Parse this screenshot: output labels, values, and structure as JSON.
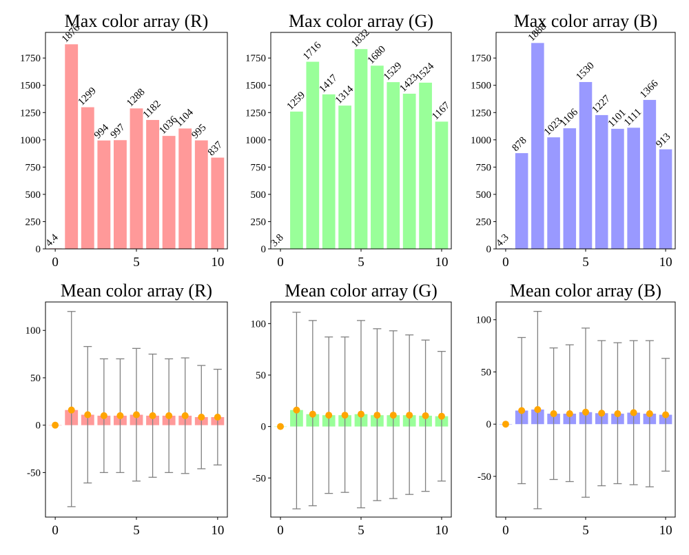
{
  "figure": {
    "background": "#ffffff"
  },
  "chart_data": [
    {
      "type": "bar",
      "title": "Max color array (R)",
      "color": "#ff9999",
      "x": [
        0,
        1,
        2,
        3,
        4,
        5,
        6,
        7,
        8,
        9,
        10
      ],
      "values": [
        4.4,
        1876,
        1299,
        994,
        997,
        1288,
        1182,
        1036,
        1104,
        995,
        837
      ],
      "labels": [
        "4.4",
        "1876",
        "1299",
        "994",
        "997",
        "1288",
        "1182",
        "1036",
        "1104",
        "995",
        "837"
      ],
      "xlim": [
        -0.6,
        10.6
      ],
      "ylim": [
        0,
        1985
      ],
      "xticks": [
        0,
        5,
        10
      ],
      "yticks": [
        0,
        250,
        500,
        750,
        1000,
        1250,
        1500,
        1750
      ]
    },
    {
      "type": "bar",
      "title": "Max color array (G)",
      "color": "#99ff99",
      "x": [
        0,
        1,
        2,
        3,
        4,
        5,
        6,
        7,
        8,
        9,
        10
      ],
      "values": [
        3.8,
        1259,
        1716,
        1417,
        1314,
        1832,
        1680,
        1529,
        1423,
        1524,
        1167
      ],
      "labels": [
        "3.8",
        "1259",
        "1716",
        "1417",
        "1314",
        "1832",
        "1680",
        "1529",
        "1423",
        "1524",
        "1167"
      ],
      "xlim": [
        -0.6,
        10.6
      ],
      "ylim": [
        0,
        1985
      ],
      "xticks": [
        0,
        5,
        10
      ],
      "yticks": [
        0,
        250,
        500,
        750,
        1000,
        1250,
        1500,
        1750
      ]
    },
    {
      "type": "bar",
      "title": "Max color array (B)",
      "color": "#9999ff",
      "x": [
        0,
        1,
        2,
        3,
        4,
        5,
        6,
        7,
        8,
        9,
        10
      ],
      "values": [
        4.3,
        878,
        1888,
        1023,
        1106,
        1530,
        1227,
        1101,
        1111,
        1366,
        913
      ],
      "labels": [
        "4.3",
        "878",
        "1888",
        "1023",
        "1106",
        "1530",
        "1227",
        "1101",
        "1111",
        "1366",
        "913"
      ],
      "xlim": [
        -0.6,
        10.6
      ],
      "ylim": [
        0,
        1985
      ],
      "xticks": [
        0,
        5,
        10
      ],
      "yticks": [
        0,
        250,
        500,
        750,
        1000,
        1250,
        1500,
        1750
      ]
    },
    {
      "type": "bar",
      "title": "Mean color array (R)",
      "color": "#ff9999",
      "marker_color": "#ffa500",
      "errorbar_color": "#808080",
      "x": [
        0,
        1,
        2,
        3,
        4,
        5,
        6,
        7,
        8,
        9,
        10
      ],
      "values": [
        0,
        16,
        11,
        10,
        10,
        11,
        10,
        10,
        10,
        8.5,
        8.5
      ],
      "error_low": [
        0,
        -86,
        -61,
        -50,
        -50,
        -59,
        -55,
        -50,
        -51,
        -46,
        -42
      ],
      "error_high": [
        0,
        120,
        83,
        70,
        70,
        81,
        75,
        70,
        71,
        63,
        59
      ],
      "xlim": [
        -0.6,
        10.6
      ],
      "ylim": [
        -97,
        130
      ],
      "xticks": [
        0,
        5,
        10
      ],
      "yticks": [
        -50,
        0,
        50,
        100
      ]
    },
    {
      "type": "bar",
      "title": "Mean color array (G)",
      "color": "#99ff99",
      "marker_color": "#ffa500",
      "errorbar_color": "#808080",
      "x": [
        0,
        1,
        2,
        3,
        4,
        5,
        6,
        7,
        8,
        9,
        10
      ],
      "values": [
        0,
        16,
        12,
        11,
        11,
        12,
        11,
        11,
        11,
        10.5,
        10
      ],
      "error_low": [
        0,
        -80,
        -77,
        -65,
        -64,
        -79,
        -72,
        -70,
        -66,
        -63,
        -53
      ],
      "error_high": [
        0,
        111,
        103,
        87,
        87,
        103,
        95,
        93,
        89,
        84,
        73
      ],
      "xlim": [
        -0.6,
        10.6
      ],
      "ylim": [
        -88,
        121
      ],
      "xticks": [
        0,
        5,
        10
      ],
      "yticks": [
        -50,
        0,
        50,
        100
      ]
    },
    {
      "type": "bar",
      "title": "Mean color array (B)",
      "color": "#9999ff",
      "marker_color": "#ffa500",
      "errorbar_color": "#808080",
      "x": [
        0,
        1,
        2,
        3,
        4,
        5,
        6,
        7,
        8,
        9,
        10
      ],
      "values": [
        0,
        13,
        14,
        10,
        10,
        11.5,
        10.5,
        10,
        11,
        10,
        9
      ],
      "error_low": [
        0,
        -57,
        -81,
        -53,
        -55,
        -70,
        -59,
        -57,
        -58,
        -60,
        -45
      ],
      "error_high": [
        0,
        83,
        108,
        73,
        76,
        92,
        80,
        78,
        80,
        80,
        63
      ],
      "xlim": [
        -0.6,
        10.6
      ],
      "ylim": [
        -89,
        117
      ],
      "xticks": [
        0,
        5,
        10
      ],
      "yticks": [
        -50,
        0,
        50,
        100
      ]
    }
  ]
}
